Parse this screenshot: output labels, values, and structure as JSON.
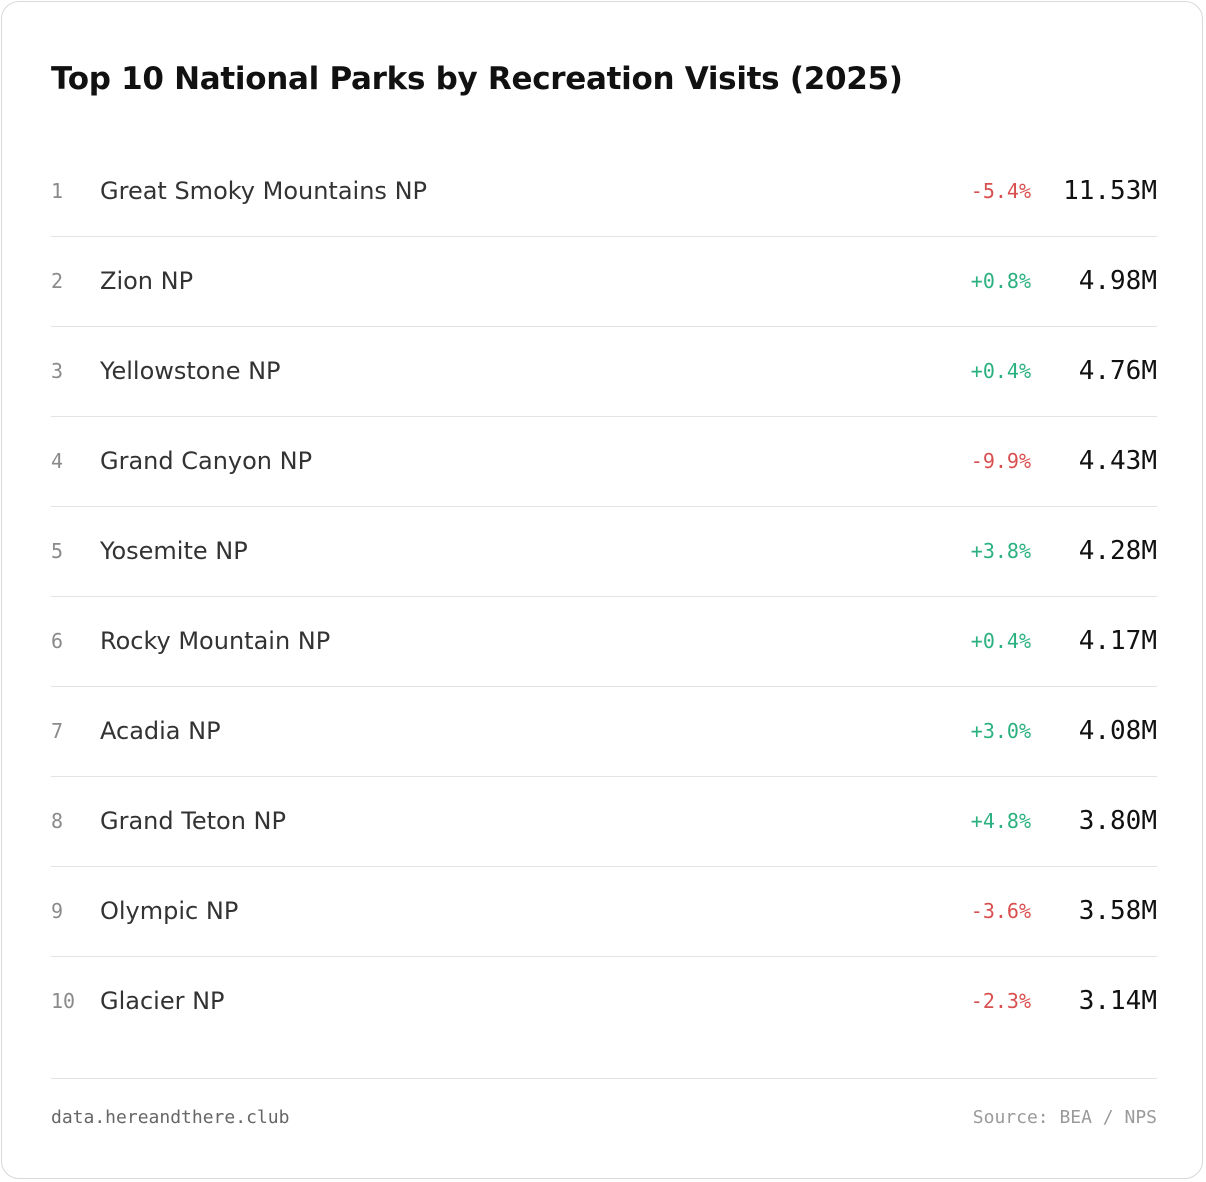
{
  "colors": {
    "negative": "#d94f4f",
    "positive": "#2bb17f"
  },
  "chart_data": {
    "type": "table",
    "title": "Top 10 National Parks by Recreation Visits (2025)",
    "columns": [
      "rank",
      "park",
      "change",
      "visits"
    ],
    "rows": [
      {
        "rank": "1",
        "park": "Great Smoky Mountains NP",
        "change": "-5.4%",
        "change_value": -5.4,
        "visits": "11.53M",
        "visits_value": 11.53
      },
      {
        "rank": "2",
        "park": "Zion NP",
        "change": "+0.8%",
        "change_value": 0.8,
        "visits": "4.98M",
        "visits_value": 4.98
      },
      {
        "rank": "3",
        "park": "Yellowstone NP",
        "change": "+0.4%",
        "change_value": 0.4,
        "visits": "4.76M",
        "visits_value": 4.76
      },
      {
        "rank": "4",
        "park": "Grand Canyon NP",
        "change": "-9.9%",
        "change_value": -9.9,
        "visits": "4.43M",
        "visits_value": 4.43
      },
      {
        "rank": "5",
        "park": "Yosemite NP",
        "change": "+3.8%",
        "change_value": 3.8,
        "visits": "4.28M",
        "visits_value": 4.28
      },
      {
        "rank": "6",
        "park": "Rocky Mountain NP",
        "change": "+0.4%",
        "change_value": 0.4,
        "visits": "4.17M",
        "visits_value": 4.17
      },
      {
        "rank": "7",
        "park": "Acadia NP",
        "change": "+3.0%",
        "change_value": 3.0,
        "visits": "4.08M",
        "visits_value": 4.08
      },
      {
        "rank": "8",
        "park": "Grand Teton NP",
        "change": "+4.8%",
        "change_value": 4.8,
        "visits": "3.80M",
        "visits_value": 3.8
      },
      {
        "rank": "9",
        "park": "Olympic NP",
        "change": "-3.6%",
        "change_value": -3.6,
        "visits": "3.58M",
        "visits_value": 3.58
      },
      {
        "rank": "10",
        "park": "Glacier NP",
        "change": "-2.3%",
        "change_value": -2.3,
        "visits": "3.14M",
        "visits_value": 3.14
      }
    ]
  },
  "footer": {
    "site": "data.hereandthere.club",
    "source": "Source: BEA / NPS"
  }
}
